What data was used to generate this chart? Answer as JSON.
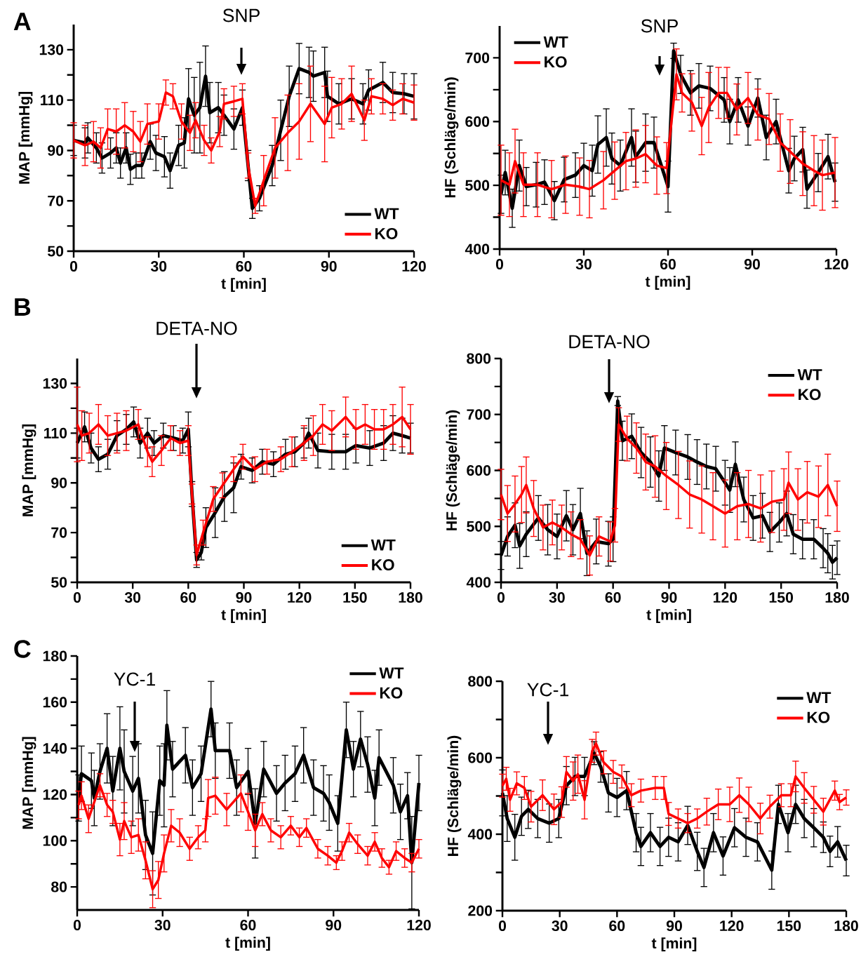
{
  "chart_data": [
    {
      "type": "line",
      "xlabel": "t [min]",
      "ylabel": "MAP [mmHg]",
      "xlim": [
        0,
        120
      ],
      "ylim": [
        50,
        140
      ],
      "xticks": [
        0,
        30,
        60,
        90,
        120
      ],
      "yticks": [
        50,
        {
          "value": 60,
          "label": null
        },
        70,
        {
          "value": 80,
          "label": null
        },
        90,
        {
          "value": 100,
          "label": null
        },
        110,
        {
          "value": 120,
          "label": null
        },
        130
      ],
      "legend": "bottom right",
      "annotations": [
        "A",
        "SNP"
      ],
      "series": [
        {
          "name": "WT",
          "color": "#000000",
          "x": [
            0,
            4,
            5,
            8,
            10,
            13,
            15,
            16.5,
            18.5,
            20,
            22,
            24,
            27,
            29,
            32,
            34,
            37,
            39,
            40.5,
            42.5,
            44.5,
            46.5,
            48,
            51,
            53,
            56.5,
            59.5,
            61.5,
            63,
            65.5,
            70,
            73,
            76,
            79.5,
            83,
            84.5,
            88.5,
            89.5,
            93.5,
            98,
            102,
            104,
            109,
            112.5,
            116.5,
            120
          ],
          "values": [
            94,
            93,
            95,
            91,
            87,
            89,
            91,
            85,
            91,
            82.5,
            84,
            84,
            93.5,
            89,
            87.5,
            82,
            92,
            93,
            110.5,
            104,
            107,
            119.5,
            105,
            107,
            104,
            98.5,
            107,
            84,
            67,
            71,
            84,
            98,
            111.5,
            122.5,
            121,
            119.5,
            121,
            111.5,
            108.5,
            110.5,
            108.5,
            114,
            117,
            113,
            112.5,
            111.5
          ],
          "errors": [
            6,
            6,
            6,
            6,
            6,
            6,
            6,
            6,
            6,
            6,
            5,
            5,
            7,
            7,
            8,
            7,
            8,
            10,
            12,
            15,
            18,
            12,
            12,
            10,
            8,
            8,
            7,
            6,
            4,
            5,
            8,
            12,
            12,
            10,
            10,
            10,
            10,
            10,
            8,
            8,
            8,
            8,
            8,
            8,
            8,
            9
          ]
        },
        {
          "name": "KO",
          "color": "#ff0000",
          "x": [
            0,
            4,
            7,
            9.5,
            12,
            15,
            18,
            21,
            23.5,
            26,
            30,
            32.5,
            35,
            38,
            41,
            43,
            46,
            48.5,
            51.5,
            53,
            56.5,
            59.5,
            61.5,
            64,
            67,
            71,
            75.5,
            79.5,
            83.5,
            88.5,
            91,
            94.5,
            98,
            102.5,
            105,
            109,
            112.5,
            116,
            120
          ],
          "values": [
            94,
            92,
            93.5,
            91,
            98.5,
            97.5,
            100,
            97.5,
            93.5,
            100.5,
            101.5,
            113,
            111.5,
            101.5,
            97,
            102,
            94,
            90,
            97.5,
            108.5,
            109.5,
            110.5,
            84,
            68,
            78,
            91,
            97,
            101.5,
            108.5,
            100.5,
            107,
            108.5,
            112.5,
            102,
            111.5,
            110.5,
            108,
            110.5,
            109
          ],
          "errors": [
            7,
            8,
            8,
            8,
            8,
            9,
            9,
            8,
            8,
            8,
            7,
            5,
            5,
            7,
            7,
            7,
            6,
            5,
            6,
            6,
            6,
            6,
            5,
            3,
            10,
            12,
            15,
            15,
            15,
            15,
            12,
            10,
            11,
            8,
            7,
            6,
            6,
            6,
            7
          ]
        }
      ]
    },
    {
      "type": "line",
      "xlabel": "t [min]",
      "ylabel": "HF (Schläge/min)",
      "xlim": [
        0,
        120
      ],
      "ylim": [
        400,
        750
      ],
      "xticks": [
        0,
        30,
        60,
        90,
        120
      ],
      "yticks": [
        400,
        {
          "value": 450,
          "label": null
        },
        500,
        {
          "value": 550,
          "label": null
        },
        600,
        {
          "value": 650,
          "label": null
        },
        700
      ],
      "legend": "top left",
      "annotations": [
        "SNP"
      ],
      "series": [
        {
          "name": "WT",
          "color": "#000000",
          "x": [
            0.5,
            2,
            4.5,
            7,
            9.5,
            13,
            16,
            19.5,
            23,
            27,
            30,
            33,
            35,
            38,
            40,
            43,
            47,
            48.5,
            52,
            55,
            60,
            62,
            64.5,
            68,
            71,
            75,
            80,
            82,
            85,
            88.5,
            92,
            95,
            98.5,
            103,
            105,
            108,
            109.5,
            113.5,
            117,
            119.5
          ],
          "values": [
            486,
            520,
            464,
            531,
            498,
            501,
            505,
            476,
            509,
            516,
            531,
            523,
            564,
            575,
            542,
            531,
            575,
            545,
            567,
            567,
            498,
            711,
            674,
            645,
            656,
            652,
            634,
            600,
            634,
            593,
            637,
            575,
            600,
            523,
            542,
            556,
            494,
            520,
            545,
            505
          ],
          "errors": [
            30,
            35,
            30,
            40,
            30,
            35,
            35,
            30,
            35,
            35,
            35,
            40,
            45,
            45,
            40,
            40,
            45,
            40,
            45,
            40,
            40,
            12,
            30,
            35,
            35,
            35,
            35,
            35,
            35,
            30,
            30,
            35,
            35,
            35,
            35,
            35,
            30,
            30,
            35,
            30
          ]
        },
        {
          "name": "KO",
          "color": "#ff0000",
          "x": [
            0.5,
            3.5,
            5.5,
            8.5,
            13.5,
            18.5,
            23.5,
            28.5,
            32,
            37,
            41,
            45,
            48.5,
            52,
            56,
            59.5,
            63,
            65,
            68.5,
            72,
            74.5,
            78,
            81,
            84.5,
            88.5,
            92,
            96,
            100,
            103.5,
            108,
            112,
            115,
            119.5
          ],
          "values": [
            508,
            501,
            538,
            501,
            501,
            494,
            501,
            498,
            494,
            508,
            523,
            538,
            542,
            549,
            531,
            527,
            674,
            645,
            630,
            593,
            622,
            645,
            645,
            619,
            637,
            611,
            604,
            567,
            553,
            534,
            523,
            516,
            520
          ],
          "errors": [
            55,
            50,
            50,
            50,
            50,
            45,
            45,
            45,
            45,
            45,
            45,
            45,
            45,
            45,
            45,
            40,
            40,
            30,
            45,
            45,
            55,
            40,
            40,
            40,
            40,
            40,
            40,
            45,
            50,
            50,
            55,
            55,
            55
          ]
        }
      ]
    },
    {
      "type": "line",
      "xlabel": "t [min]",
      "ylabel": "MAP [mmHg]",
      "xlim": [
        0,
        180
      ],
      "ylim": [
        50,
        140
      ],
      "xticks": [
        0,
        30,
        60,
        90,
        120,
        150,
        180
      ],
      "yticks": [
        50,
        {
          "value": 60,
          "label": null
        },
        70,
        {
          "value": 80,
          "label": null
        },
        90,
        {
          "value": 100,
          "label": null
        },
        110,
        {
          "value": 120,
          "label": null
        },
        130
      ],
      "legend": "bottom right",
      "annotations": [
        "B",
        "DETA-NO"
      ],
      "series": [
        {
          "name": "WT",
          "color": "#000000",
          "x": [
            0,
            4,
            7.5,
            11.5,
            16.5,
            21.5,
            26.5,
            30.5,
            34,
            38,
            41.5,
            46.5,
            52,
            57,
            60,
            62,
            64.5,
            67,
            69.5,
            74.5,
            79.5,
            84.5,
            88.5,
            94.5,
            100,
            106,
            112.5,
            117.5,
            122.5,
            125,
            130,
            137.5,
            145,
            150.5,
            158,
            165.5,
            170.5,
            175.5,
            180
          ],
          "values": [
            106,
            112.5,
            104,
            99.5,
            101.5,
            109,
            111.5,
            114.5,
            106,
            110,
            106,
            109,
            108,
            107,
            111.5,
            85.5,
            59,
            62,
            72,
            78,
            84.5,
            88,
            96.5,
            95,
            98.5,
            97.5,
            101.5,
            102.5,
            106,
            110,
            103,
            102.5,
            102.5,
            105,
            104,
            106,
            110,
            109,
            108
          ],
          "errors": [
            6,
            6,
            6,
            5,
            6,
            6,
            6,
            6,
            6,
            6,
            5,
            5,
            5,
            5,
            7,
            5,
            3,
            3,
            8,
            10,
            10,
            10,
            5,
            5,
            5,
            5,
            6,
            6,
            6,
            6,
            7,
            7,
            7,
            7,
            7,
            7,
            7,
            7,
            6
          ]
        },
        {
          "name": "KO",
          "color": "#ff0000",
          "x": [
            0,
            2.5,
            6.5,
            11.5,
            16.5,
            21.5,
            26.5,
            33,
            38,
            40.5,
            45.5,
            50.5,
            55.5,
            60,
            62,
            64.5,
            68,
            73.5,
            78.5,
            84.5,
            89.5,
            96,
            102.5,
            110,
            116,
            122.5,
            127.5,
            132.5,
            137.5,
            145,
            150.5,
            155.5,
            160.5,
            165.5,
            170.5,
            175.5,
            180
          ],
          "values": [
            113.5,
            109,
            110,
            113.5,
            109,
            110,
            111,
            113.5,
            102.5,
            98.5,
            103,
            108,
            106,
            107,
            85.5,
            61,
            70,
            83.5,
            89,
            95.5,
            100.5,
            95.5,
            98.5,
            99.5,
            102.5,
            106,
            109,
            113.5,
            111,
            116.5,
            111.5,
            113.5,
            111.5,
            111.5,
            113.5,
            116.5,
            111.5
          ],
          "errors": [
            15,
            10,
            8,
            8,
            8,
            8,
            8,
            6,
            6,
            6,
            6,
            5,
            5,
            6,
            4,
            4,
            5,
            5,
            5,
            5,
            5,
            5,
            5,
            5,
            6,
            7,
            8,
            8,
            8,
            8,
            8,
            8,
            8,
            8,
            8,
            12,
            10
          ]
        }
      ]
    },
    {
      "type": "line",
      "xlabel": "t [min]",
      "ylabel": "HF (Schläge/min)",
      "xlim": [
        0,
        180
      ],
      "ylim": [
        400,
        800
      ],
      "xticks": [
        0,
        30,
        60,
        90,
        120,
        150,
        180
      ],
      "yticks": [
        400,
        {
          "value": 450,
          "label": null
        },
        500,
        {
          "value": 550,
          "label": null
        },
        600,
        {
          "value": 650,
          "label": null
        },
        700,
        {
          "value": 750,
          "label": null
        },
        800
      ],
      "legend": "top right",
      "annotations": [
        "DETA-NO"
      ],
      "series": [
        {
          "name": "WT",
          "color": "#000000",
          "x": [
            0,
            3.5,
            7.5,
            10,
            13.5,
            20,
            25,
            30,
            35,
            38.5,
            42.5,
            46,
            51,
            57.5,
            60,
            62.5,
            65,
            70,
            75,
            80,
            84.5,
            87.5,
            93.5,
            100,
            105,
            110,
            115,
            120,
            122.5,
            125.5,
            130,
            135,
            140,
            144,
            149,
            153,
            156.5,
            161.5,
            167.5,
            172.5,
            175,
            177.5,
            180
          ],
          "values": [
            448,
            482,
            502,
            465,
            486,
            515,
            494,
            482,
            519,
            494,
            523,
            452,
            473,
            469,
            477,
            724,
            653,
            661,
            632,
            615,
            590,
            640,
            632,
            624,
            615,
            607,
            603,
            578,
            565,
            611,
            548,
            515,
            519,
            490,
            507,
            523,
            486,
            477,
            477,
            461,
            452,
            436,
            444
          ],
          "errors": [
            25,
            35,
            40,
            40,
            40,
            40,
            45,
            40,
            45,
            45,
            45,
            40,
            40,
            40,
            40,
            8,
            35,
            40,
            45,
            45,
            45,
            40,
            40,
            40,
            40,
            40,
            40,
            40,
            40,
            40,
            40,
            40,
            40,
            35,
            35,
            40,
            35,
            35,
            35,
            35,
            35,
            30,
            30
          ]
        },
        {
          "name": "KO",
          "color": "#ff0000",
          "x": [
            0,
            3.5,
            7.5,
            11,
            13.5,
            17.5,
            22.5,
            27.5,
            32.5,
            37.5,
            42.5,
            47.5,
            52.5,
            58.5,
            61,
            63,
            67.5,
            72.5,
            77.5,
            82.5,
            88.5,
            95,
            101,
            107.5,
            113.5,
            120,
            126.5,
            132.5,
            139,
            145,
            151.5,
            154,
            159,
            164,
            170,
            175,
            180
          ],
          "values": [
            557,
            523,
            540,
            557,
            574,
            532,
            498,
            507,
            498,
            486,
            477,
            448,
            482,
            473,
            502,
            682,
            657,
            640,
            615,
            607,
            590,
            574,
            557,
            548,
            536,
            523,
            536,
            540,
            532,
            544,
            548,
            578,
            548,
            561,
            553,
            574,
            536
          ],
          "errors": [
            45,
            50,
            50,
            50,
            50,
            50,
            40,
            40,
            40,
            40,
            35,
            35,
            35,
            35,
            30,
            30,
            40,
            45,
            50,
            55,
            60,
            60,
            60,
            60,
            60,
            60,
            60,
            60,
            60,
            55,
            55,
            55,
            55,
            55,
            55,
            55,
            45
          ]
        }
      ]
    },
    {
      "type": "line",
      "xlabel": "t [min]",
      "ylabel": "MAP [mmHg]",
      "xlim": [
        0,
        120
      ],
      "ylim": [
        70,
        180
      ],
      "xticks": [
        0,
        30,
        60,
        90,
        120
      ],
      "yticks": [
        80,
        {
          "value": 90,
          "label": null
        },
        100,
        {
          "value": 110,
          "label": null
        },
        120,
        {
          "value": 130,
          "label": null
        },
        140,
        {
          "value": 150,
          "label": null
        },
        160,
        {
          "value": 170,
          "label": null
        },
        180
      ],
      "legend": "top right",
      "annotations": [
        "C",
        "YC-1"
      ],
      "series": [
        {
          "name": "WT",
          "color": "#000000",
          "x": [
            0.5,
            1.5,
            5,
            6,
            8,
            10.5,
            12.5,
            15,
            16.5,
            19.5,
            21.5,
            24,
            26.5,
            29,
            30.5,
            31.5,
            33.5,
            38,
            40.5,
            43.5,
            47,
            48.5,
            53.5,
            56,
            60,
            62.5,
            65.5,
            70,
            73,
            76.5,
            79.5,
            83,
            86.5,
            88.5,
            91.5,
            94.5,
            97,
            99.5,
            102,
            104.5,
            106,
            111,
            113.5,
            116,
            117.5,
            120
          ],
          "values": [
            118.5,
            129,
            126,
            118.5,
            130,
            140,
            121.5,
            140,
            130,
            121.5,
            127,
            102.5,
            94.5,
            126,
            124,
            150,
            131,
            137,
            123,
            129,
            157,
            139,
            139,
            123,
            130,
            107.5,
            131,
            120.5,
            125,
            129,
            137,
            123,
            120.5,
            116.5,
            107.5,
            148,
            131,
            144,
            133,
            118.5,
            136,
            124,
            112.5,
            119.5,
            90.5,
            125
          ],
          "errors": [
            10,
            12,
            12,
            12,
            12,
            15,
            15,
            18,
            18,
            15,
            15,
            15,
            18,
            15,
            18,
            15,
            12,
            12,
            12,
            12,
            12,
            12,
            12,
            12,
            10,
            15,
            12,
            12,
            12,
            12,
            12,
            12,
            12,
            12,
            12,
            12,
            12,
            12,
            12,
            12,
            12,
            12,
            12,
            10,
            20,
            12
          ]
        },
        {
          "name": "KO",
          "color": "#ff0000",
          "x": [
            0.5,
            1.5,
            4,
            8,
            10.5,
            12.5,
            15,
            16.5,
            19,
            21.5,
            24,
            26.5,
            28.5,
            30.5,
            33,
            36,
            39.5,
            42.5,
            45,
            46,
            48.5,
            52.5,
            57.5,
            60,
            62.5,
            65,
            68,
            71.5,
            75,
            78,
            80.5,
            84.5,
            88,
            91,
            93,
            95.5,
            98.5,
            102,
            104.5,
            107,
            109.5,
            112,
            115,
            117.5,
            120
          ],
          "values": [
            115.5,
            119.5,
            109.5,
            124,
            115.5,
            112.5,
            100.5,
            108.5,
            101.5,
            102.5,
            91.5,
            79,
            83,
            94.5,
            106.5,
            103.5,
            96.5,
            101.5,
            104.5,
            118.5,
            119.5,
            113.5,
            120.5,
            112.5,
            104.5,
            111.5,
            104.5,
            101.5,
            106.5,
            101.5,
            105.5,
            96.5,
            93.5,
            90.5,
            95.5,
            103.5,
            98.5,
            93.5,
            99.5,
            92.5,
            88.5,
            95.5,
            92.5,
            90.5,
            96.5
          ],
          "errors": [
            6,
            6,
            6,
            5,
            5,
            5,
            7,
            8,
            7,
            7,
            8,
            8,
            8,
            8,
            7,
            6,
            5,
            5,
            5,
            8,
            8,
            7,
            8,
            8,
            7,
            5,
            5,
            5,
            4,
            4,
            4,
            4,
            4,
            3,
            4,
            4,
            4,
            4,
            4,
            4,
            3,
            4,
            4,
            4,
            4
          ]
        }
      ]
    },
    {
      "type": "line",
      "xlabel": "t [min]",
      "ylabel": "HF (Schläge/min)",
      "xlim": [
        0,
        180
      ],
      "ylim": [
        200,
        800
      ],
      "xticks": [
        0,
        30,
        60,
        90,
        120,
        150,
        180
      ],
      "yticks": [
        200,
        {
          "value": 300,
          "label": null
        },
        400,
        {
          "value": 500,
          "label": null
        },
        600,
        {
          "value": 700,
          "label": null
        },
        800
      ],
      "legend": "top right",
      "annotations": [
        "YC-1"
      ],
      "series": [
        {
          "name": "WT",
          "color": "#000000",
          "x": [
            0,
            2.5,
            6.5,
            10,
            13.5,
            18.5,
            24.5,
            29.5,
            33.5,
            38,
            43,
            48,
            51.5,
            55.5,
            60,
            65,
            70,
            72.5,
            77.5,
            82.5,
            87,
            92,
            97,
            102,
            105.5,
            110.5,
            115.5,
            121.5,
            127.5,
            133.5,
            141,
            144.5,
            149.5,
            153.5,
            158,
            163,
            168,
            171.5,
            175.5,
            180
          ],
          "values": [
            508,
            441,
            392,
            447,
            465,
            441,
            429,
            441,
            527,
            551,
            551,
            612,
            576,
            508,
            496,
            514,
            404,
            368,
            404,
            368,
            392,
            380,
            423,
            355,
            313,
            404,
            343,
            417,
            392,
            380,
            306,
            478,
            404,
            478,
            441,
            417,
            392,
            355,
            380,
            331
          ],
          "errors": [
            60,
            60,
            60,
            50,
            50,
            50,
            50,
            50,
            50,
            50,
            50,
            30,
            40,
            50,
            50,
            50,
            50,
            50,
            50,
            50,
            50,
            50,
            50,
            50,
            50,
            50,
            50,
            50,
            50,
            50,
            50,
            50,
            50,
            50,
            50,
            50,
            40,
            40,
            40,
            40
          ]
        },
        {
          "name": "KO",
          "color": "#ff0000",
          "x": [
            0,
            2,
            4,
            7.5,
            11.5,
            15,
            21,
            27,
            31,
            33.5,
            37,
            39.5,
            43,
            47,
            49,
            53,
            58,
            62.5,
            67.5,
            72.5,
            80,
            84.5,
            87,
            92,
            97,
            102,
            107,
            113,
            119,
            124,
            129,
            135,
            140,
            146,
            151,
            153.5,
            158,
            163,
            168,
            174,
            176.5,
            180
          ],
          "values": [
            527,
            545,
            490,
            533,
            521,
            472,
            502,
            465,
            484,
            563,
            539,
            557,
            490,
            618,
            637,
            588,
            563,
            551,
            502,
            514,
            521,
            521,
            453,
            441,
            429,
            441,
            459,
            478,
            478,
            502,
            478,
            441,
            472,
            502,
            502,
            551,
            521,
            490,
            459,
            514,
            484,
            496
          ],
          "errors": [
            30,
            30,
            30,
            30,
            30,
            40,
            40,
            40,
            40,
            40,
            50,
            50,
            50,
            30,
            30,
            30,
            30,
            30,
            30,
            30,
            30,
            30,
            30,
            25,
            25,
            25,
            35,
            40,
            45,
            45,
            45,
            40,
            30,
            30,
            30,
            40,
            40,
            35,
            35,
            25,
            20,
            20
          ]
        }
      ]
    }
  ]
}
